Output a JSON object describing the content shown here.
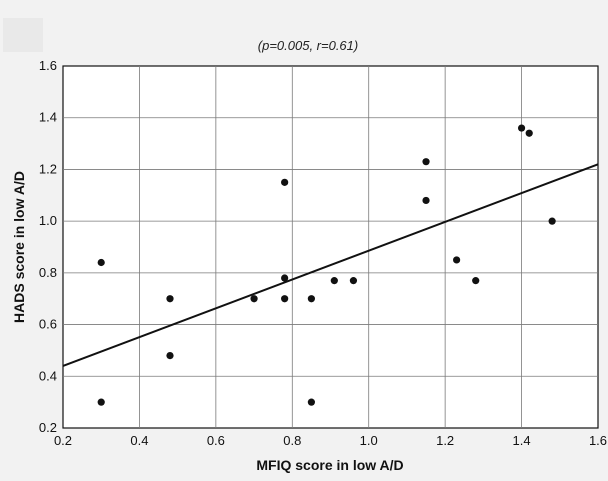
{
  "chart_data": {
    "type": "scatter",
    "subtitle": "(p=0.005, r=0.61)",
    "xlabel": "MFIQ score in low A/D",
    "ylabel": "HADS score in low A/D",
    "xlim": [
      0.2,
      1.6
    ],
    "ylim": [
      0.2,
      1.6
    ],
    "x_ticks": [
      "0.2",
      "0.4",
      "0.6",
      "0.8",
      "1.0",
      "1.2",
      "1.4",
      "1.6"
    ],
    "y_ticks": [
      "0.2",
      "0.4",
      "0.6",
      "0.8",
      "1.0",
      "1.2",
      "1.4",
      "1.6"
    ],
    "grid": true,
    "points": [
      {
        "x": 0.3,
        "y": 0.84
      },
      {
        "x": 0.3,
        "y": 0.3
      },
      {
        "x": 0.48,
        "y": 0.7
      },
      {
        "x": 0.48,
        "y": 0.48
      },
      {
        "x": 0.7,
        "y": 0.7
      },
      {
        "x": 0.78,
        "y": 1.15
      },
      {
        "x": 0.78,
        "y": 0.78
      },
      {
        "x": 0.78,
        "y": 0.7
      },
      {
        "x": 0.85,
        "y": 0.7
      },
      {
        "x": 0.85,
        "y": 0.3
      },
      {
        "x": 0.91,
        "y": 0.77
      },
      {
        "x": 0.96,
        "y": 0.77
      },
      {
        "x": 1.15,
        "y": 1.23
      },
      {
        "x": 1.15,
        "y": 1.08
      },
      {
        "x": 1.23,
        "y": 0.85
      },
      {
        "x": 1.28,
        "y": 0.77
      },
      {
        "x": 1.4,
        "y": 1.36
      },
      {
        "x": 1.42,
        "y": 1.34
      },
      {
        "x": 1.48,
        "y": 1.0
      }
    ],
    "trendline": {
      "x": [
        0.2,
        1.6
      ],
      "y": [
        0.44,
        1.22
      ]
    }
  }
}
